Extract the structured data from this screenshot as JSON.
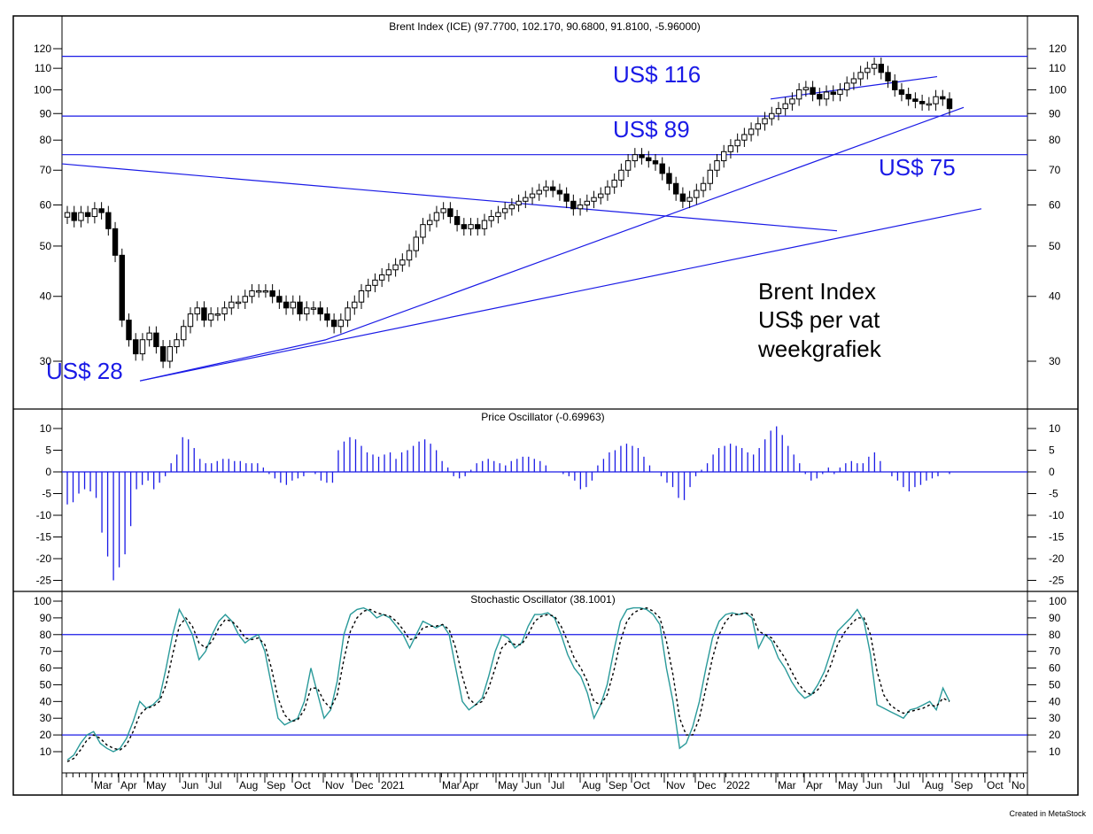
{
  "colors": {
    "up_candle": "#ffffff",
    "down_candle": "#000000",
    "trend_lines": "#1a1ae6",
    "oscillator_bars": "#1a1ae6",
    "stochastic_k": "#2a9a9a",
    "stochastic_d": "#000000",
    "frame": "#000000",
    "background": "#ffffff"
  },
  "credit": "Created in MetaStock",
  "x_axis": {
    "ticks": [
      "Mar",
      "Apr",
      "May",
      "Jun",
      "Jul",
      "Aug",
      "Sep",
      "Oct",
      "Nov",
      "Dec",
      "2021",
      "Mar",
      "Apr",
      "May",
      "Jun",
      "Jul",
      "Aug",
      "Sep",
      "Oct",
      "Nov",
      "Dec",
      "2022",
      "Mar",
      "Apr",
      "May",
      "Jun",
      "Jul",
      "Aug",
      "Sep",
      "Oct",
      "No"
    ]
  },
  "chart_data": [
    {
      "type": "candlestick",
      "title": "Brent Index (ICE) (97.7700, 102.170, 90.6800, 91.8100, -5.96000)",
      "scale": "log",
      "ylim": [
        25,
        125
      ],
      "yticks": [
        30,
        40,
        50,
        60,
        70,
        80,
        90,
        100,
        110,
        120
      ],
      "close_series": [
        58,
        56,
        58,
        57,
        59,
        58,
        54,
        48,
        36,
        33,
        31,
        33,
        34,
        32,
        30,
        32,
        33,
        35,
        37,
        38,
        36,
        37,
        37,
        38,
        39,
        39,
        40,
        41,
        41,
        41,
        40,
        39,
        38,
        39,
        37,
        38,
        38,
        37,
        36,
        35,
        36,
        38,
        39,
        41,
        42,
        43,
        44,
        45,
        46,
        47,
        49,
        52,
        55,
        56,
        58,
        59,
        57,
        55,
        54,
        55,
        54,
        56,
        57,
        58,
        59,
        60,
        61,
        62,
        63,
        64,
        65,
        64,
        63,
        61,
        59,
        60,
        61,
        62,
        63,
        65,
        67,
        70,
        73,
        75,
        74,
        73,
        72,
        69,
        66,
        63,
        61,
        62,
        64,
        66,
        70,
        73,
        76,
        78,
        80,
        82,
        84,
        86,
        88,
        90,
        92,
        94,
        96,
        100,
        101,
        98,
        96,
        99,
        98,
        100,
        103,
        105,
        108,
        110,
        112,
        108,
        104,
        100,
        98,
        96,
        95,
        94,
        94,
        97,
        96,
        92
      ],
      "horizontal_levels": [
        116,
        89,
        75
      ],
      "labels": [
        "US$ 116",
        "US$ 89",
        "US$ 75",
        "US$ 28"
      ],
      "annotation": [
        "Brent Index",
        "US$ per vat",
        "weekgrafiek"
      ]
    },
    {
      "type": "bar",
      "title": "Price Oscillator (-0.69963)",
      "ylim": [
        -27,
        12
      ],
      "yticks": [
        10,
        5,
        0,
        -5,
        -10,
        -15,
        -20,
        -25
      ],
      "values": [
        -7.5,
        -7,
        -5,
        -4,
        -4.5,
        -6,
        -14,
        -19.5,
        -25,
        -22,
        -19,
        -12.5,
        -4,
        -3,
        -2,
        -4,
        -2.5,
        -1,
        2,
        4,
        8,
        7.5,
        5.5,
        3,
        2,
        2,
        2.5,
        3,
        3,
        2.5,
        2.5,
        2,
        2,
        2,
        1,
        -0.5,
        -1.5,
        -2.5,
        -3,
        -2,
        -1.5,
        -1,
        0,
        -0.5,
        -2,
        -2.5,
        -2.5,
        5,
        7,
        8,
        7.5,
        6,
        4.5,
        4,
        3.5,
        4,
        4.5,
        3,
        4.5,
        5,
        6,
        7,
        7.5,
        6.5,
        5,
        2.5,
        1,
        -1,
        -1.5,
        -1,
        0.5,
        2,
        2.5,
        3,
        2.5,
        2,
        1.5,
        2.5,
        3,
        3.5,
        3.5,
        3,
        2.5,
        1.5,
        0,
        0,
        -0.5,
        -1,
        -2,
        -4,
        -3.5,
        -2,
        1.5,
        3,
        4.5,
        5,
        6,
        6.5,
        6,
        5.5,
        3.5,
        1.5,
        0,
        -1,
        -2.5,
        -3.5,
        -6,
        -6.5,
        -3.5,
        -1,
        0.5,
        2,
        4,
        5.5,
        6,
        6.5,
        6,
        5.5,
        4.5,
        4,
        5.5,
        7.5,
        9.5,
        10.5,
        8.5,
        6,
        4,
        2,
        -0.5,
        -2,
        -1.5,
        -0.5,
        1,
        -0.5,
        1,
        2,
        2.5,
        2,
        2,
        3.5,
        4.5,
        2.5,
        0,
        -1,
        -2,
        -3.5,
        -4.5,
        -3.5,
        -3,
        -2,
        -1.5,
        -1,
        0,
        -0.5
      ]
    },
    {
      "type": "line",
      "title": "Stochastic Oscillator (38.1001)",
      "ylim": [
        0,
        100
      ],
      "yticks": [
        10,
        20,
        30,
        40,
        50,
        60,
        70,
        80,
        90,
        100
      ],
      "horizontal_levels": [
        80,
        20
      ],
      "series": [
        {
          "values": [
            5,
            8,
            15,
            20,
            22,
            15,
            12,
            10,
            12,
            18,
            28,
            40,
            36,
            38,
            42,
            60,
            80,
            95,
            88,
            80,
            65,
            70,
            80,
            88,
            92,
            88,
            80,
            75,
            78,
            80,
            70,
            50,
            30,
            26,
            28,
            30,
            40,
            60,
            45,
            30,
            35,
            52,
            80,
            92,
            95,
            96,
            94,
            90,
            92,
            90,
            85,
            80,
            72,
            80,
            88,
            86,
            84,
            86,
            80,
            60,
            40,
            35,
            38,
            42,
            55,
            70,
            80,
            78,
            72,
            75,
            85,
            92,
            92,
            93,
            90,
            80,
            68,
            60,
            55,
            45,
            30,
            38,
            50,
            70,
            88,
            95,
            96,
            96,
            95,
            92,
            86,
            60,
            40,
            12,
            15,
            25,
            40,
            60,
            78,
            88,
            92,
            93,
            92,
            93,
            90,
            72,
            80,
            76,
            66,
            60,
            52,
            46,
            42,
            44,
            50,
            58,
            70,
            82,
            86,
            90,
            95,
            88,
            68,
            38,
            36,
            34,
            32,
            30,
            35,
            36,
            38,
            40,
            35,
            48,
            40
          ]
        },
        {
          "values": [
            4,
            6,
            11,
            17,
            20,
            18,
            14,
            12,
            11,
            14,
            22,
            32,
            36,
            37,
            40,
            50,
            68,
            85,
            90,
            85,
            75,
            72,
            76,
            84,
            89,
            88,
            84,
            78,
            77,
            78,
            74,
            60,
            42,
            32,
            28,
            29,
            35,
            48,
            48,
            40,
            36,
            44,
            65,
            82,
            90,
            94,
            95,
            93,
            92,
            91,
            88,
            83,
            77,
            78,
            84,
            85,
            85,
            86,
            83,
            72,
            55,
            42,
            38,
            40,
            48,
            60,
            72,
            76,
            74,
            74,
            80,
            88,
            91,
            92,
            91,
            85,
            76,
            66,
            60,
            52,
            40,
            38,
            44,
            58,
            76,
            88,
            93,
            95,
            96,
            94,
            90,
            76,
            56,
            30,
            20,
            20,
            30,
            48,
            66,
            80,
            88,
            92,
            92,
            93,
            92,
            82,
            80,
            78,
            72,
            66,
            58,
            51,
            46,
            44,
            47,
            53,
            62,
            74,
            81,
            86,
            90,
            90,
            80,
            58,
            44,
            38,
            35,
            33,
            34,
            35,
            36,
            38,
            37,
            42,
            40
          ]
        }
      ]
    }
  ]
}
